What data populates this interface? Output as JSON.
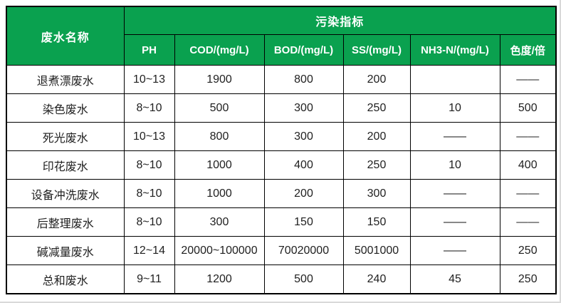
{
  "table": {
    "name_header": "废水名称",
    "group_header": "污染指标",
    "columns": [
      "PH",
      "COD/(mg/L)",
      "BOD/(mg/L)",
      "SS/(mg/L)",
      "NH3-N/(mg/L)",
      "色度/倍"
    ],
    "rows": [
      {
        "name": "退煮漂废水",
        "values": [
          "10~13",
          "1900",
          "800",
          "200",
          "",
          "——"
        ]
      },
      {
        "name": "染色废水",
        "values": [
          "8~10",
          "500",
          "300",
          "250",
          "10",
          "500"
        ]
      },
      {
        "name": "死光废水",
        "values": [
          "10~13",
          "800",
          "300",
          "200",
          "——",
          "——"
        ]
      },
      {
        "name": "印花废水",
        "values": [
          "8~10",
          "1000",
          "400",
          "250",
          "10",
          "400"
        ]
      },
      {
        "name": "设备冲洗废水",
        "values": [
          "8~10",
          "1000",
          "200",
          "300",
          "——",
          "——"
        ]
      },
      {
        "name": "后整理废水",
        "values": [
          "8~10",
          "300",
          "150",
          "150",
          "——",
          "——"
        ]
      },
      {
        "name": "碱减量废水",
        "values": [
          "12~14",
          "20000~100000",
          "70020000",
          "5001000",
          "——",
          "250"
        ]
      },
      {
        "name": "总和废水",
        "values": [
          "9~11",
          "1200",
          "500",
          "240",
          "45",
          "250"
        ]
      }
    ],
    "colors": {
      "header_bg": "#0aa14f",
      "header_text": "#ffffff",
      "body_text": "#1f1f1f",
      "border": "#000000"
    }
  }
}
